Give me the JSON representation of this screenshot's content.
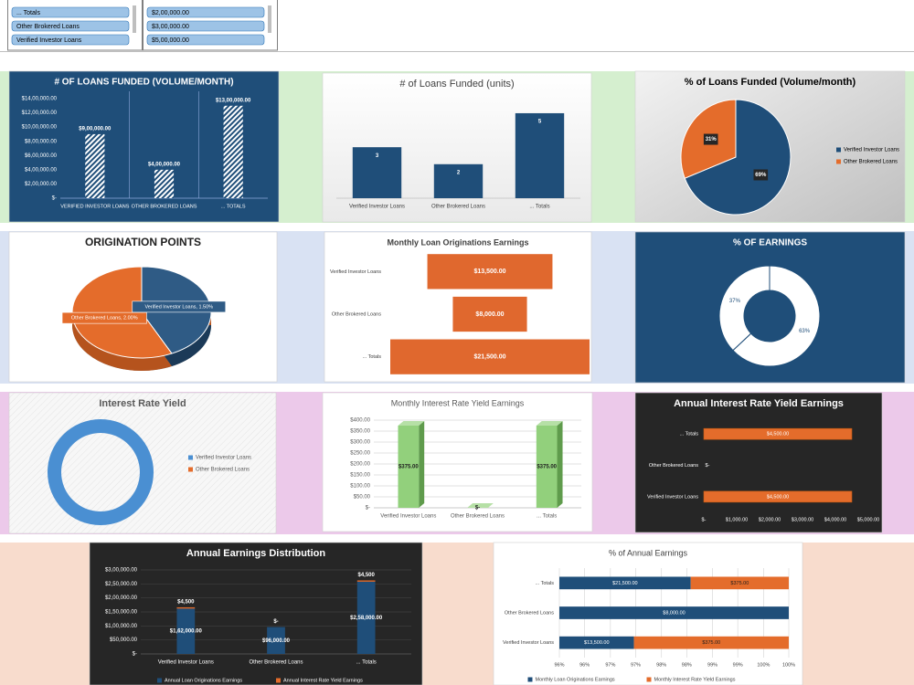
{
  "slicers": [
    {
      "items": [
        "... Totals",
        "Other Brokered Loans",
        "Verified Investor Loans"
      ]
    },
    {
      "items": [
        "$2,00,000.00",
        "$3,00,000.00",
        "$5,00,000.00"
      ]
    }
  ],
  "chart_data": [
    {
      "type": "bar",
      "title": "# OF LOANS FUNDED  (VOLUME/MONTH)",
      "categories": [
        "VERIFIED INVESTOR LOANS",
        "OTHER BROKERED LOANS",
        "... TOTALS"
      ],
      "values": [
        900000,
        400000,
        1300000
      ],
      "value_labels": [
        "$9,00,000.00",
        "$4,00,000.00",
        "$13,00,000.00"
      ],
      "color": "#ffffff",
      "ylim": [
        0,
        1400000
      ],
      "yticks": [
        {
          "value": 0,
          "label": "$-"
        },
        {
          "value": 200000,
          "label": "$2,00,000.00"
        },
        {
          "value": 400000,
          "label": "$4,00,000.00"
        },
        {
          "value": 600000,
          "label": "$6,00,000.00"
        },
        {
          "value": 800000,
          "label": "$8,00,000.00"
        },
        {
          "value": 1000000,
          "label": "$10,00,000.00"
        },
        {
          "value": 1200000,
          "label": "$12,00,000.00"
        },
        {
          "value": 1400000,
          "label": "$14,00,000.00"
        }
      ]
    },
    {
      "type": "bar",
      "title": "# of Loans Funded (units)",
      "categories": [
        "Verified Investor Loans",
        "Other Brokered Loans",
        "... Totals"
      ],
      "values": [
        3,
        2,
        5
      ],
      "color": "#1f4e79"
    },
    {
      "type": "pie",
      "title": "% of Loans Funded  (Volume/month)",
      "categories": [
        "Verified Investor Loans",
        "Other Brokered Loans"
      ],
      "values": [
        69,
        31
      ],
      "value_labels": [
        "69%",
        "31%"
      ],
      "colors": [
        "#1f4e79",
        "#e46c2b"
      ],
      "legend": "right"
    },
    {
      "type": "pie",
      "title": "ORIGINATION POINTS",
      "categories": [
        "Verified Investor Loans",
        "Other Brokered Loans"
      ],
      "values": [
        1.5,
        2.0
      ],
      "value_labels": [
        "Verified Investor Loans, 1.50%",
        "Other Brokered Loans, 2.00%"
      ],
      "colors": [
        "#2f5b85",
        "#e46c2b"
      ]
    },
    {
      "type": "funnel",
      "title": "Monthly Loan Originations Earnings",
      "categories": [
        "Verified Investor Loans",
        "Other Brokered Loans",
        "... Totals"
      ],
      "values": [
        13500,
        8000,
        21500
      ],
      "value_labels": [
        "$13,500.00",
        "$8,000.00",
        "$21,500.00"
      ],
      "color": "#e0682e"
    },
    {
      "type": "donut",
      "title": "% OF EARNINGS",
      "values": [
        63,
        37
      ],
      "value_labels": [
        "63%",
        "37%"
      ],
      "colors": [
        "#ffffff",
        "#ffffff"
      ]
    },
    {
      "type": "donut",
      "title": "Interest Rate Yield",
      "categories": [
        "Verified Investor Loans",
        "Other Brokered Loans"
      ],
      "values": [
        0.5,
        0
      ],
      "colors": [
        "#4a8fd2",
        "#e46c2b"
      ],
      "legend": "right"
    },
    {
      "type": "bar",
      "title": "Monthly Interest Rate Yield Earnings",
      "categories": [
        "Verified Investor Loans",
        "Other Brokered Loans",
        "... Totals"
      ],
      "values": [
        375,
        0,
        375
      ],
      "value_labels": [
        "$375.00",
        "$-",
        "$375.00"
      ],
      "color": "#92d07c",
      "ylim": [
        0,
        400
      ],
      "grid": true,
      "yticks": [
        {
          "value": 0,
          "label": "$-"
        },
        {
          "value": 50,
          "label": "$50.00"
        },
        {
          "value": 100,
          "label": "$100.00"
        },
        {
          "value": 150,
          "label": "$150.00"
        },
        {
          "value": 200,
          "label": "$200.00"
        },
        {
          "value": 250,
          "label": "$250.00"
        },
        {
          "value": 300,
          "label": "$300.00"
        },
        {
          "value": 350,
          "label": "$350.00"
        },
        {
          "value": 400,
          "label": "$400.00"
        }
      ]
    },
    {
      "type": "barh",
      "title": "Annual Interest Rate Yield Earnings",
      "categories": [
        "Verified Investor Loans",
        "Other Brokered Loans",
        "... Totals"
      ],
      "values": [
        4500,
        0,
        4500
      ],
      "value_labels": [
        "$4,500.00",
        "$-",
        "$4,500.00"
      ],
      "color": "#e46c2b",
      "xlim": [
        0,
        5000
      ],
      "xticks": [
        {
          "value": 0,
          "label": "$-"
        },
        {
          "value": 1000,
          "label": "$1,000.00"
        },
        {
          "value": 2000,
          "label": "$2,000.00"
        },
        {
          "value": 3000,
          "label": "$3,000.00"
        },
        {
          "value": 4000,
          "label": "$4,000.00"
        },
        {
          "value": 5000,
          "label": "$5,000.00"
        }
      ]
    },
    {
      "type": "bar",
      "title": "Annual Earnings Distribution",
      "categories": [
        "Verified Investor Loans",
        "Other Brokered Loans",
        "... Totals"
      ],
      "series": [
        {
          "name": "Annual Loan Originations Earnings",
          "color": "#1f4e79",
          "values": [
            162000,
            96000,
            258000
          ],
          "value_labels": [
            "$1,62,000.00",
            "$96,000.00",
            "$2,58,000.00"
          ]
        },
        {
          "name": "Annual Interest Rate Yield Earnings",
          "color": "#e46c2b",
          "values": [
            4500,
            0,
            4500
          ],
          "value_labels": [
            "$4,500",
            "$-",
            "$4,500"
          ]
        }
      ],
      "ylim": [
        0,
        300000
      ],
      "grid": true,
      "legend": "bottom",
      "yticks": [
        {
          "value": 0,
          "label": "$-"
        },
        {
          "value": 50000,
          "label": "$50,000.00"
        },
        {
          "value": 100000,
          "label": "$1,00,000.00"
        },
        {
          "value": 150000,
          "label": "$1,50,000.00"
        },
        {
          "value": 200000,
          "label": "$2,00,000.00"
        },
        {
          "value": 250000,
          "label": "$2,50,000.00"
        },
        {
          "value": 300000,
          "label": "$3,00,000.00"
        }
      ]
    },
    {
      "type": "barh",
      "title": "% of Annual Earnings",
      "categories": [
        "Verified Investor Loans",
        "Other Brokered Loans",
        "... Totals"
      ],
      "series": [
        {
          "name": "Monthly Loan Originations Earnings",
          "color": "#1f4e79",
          "values": [
            97.3,
            100,
            98.29
          ],
          "labels": [
            "$13,500.00",
            "$8,000.00",
            "$21,500.00"
          ]
        },
        {
          "name": "Monthly Interest Rate Yield Earnings",
          "color": "#e46c2b",
          "values": [
            2.7,
            0,
            1.71
          ],
          "labels": [
            "$375.00",
            null,
            "$375.00"
          ]
        }
      ],
      "xlim": [
        96,
        100
      ],
      "grid": true,
      "legend": "bottom",
      "xticks": [
        {
          "value": 96,
          "label": "96%"
        },
        {
          "value": 96.44,
          "label": "96%"
        },
        {
          "value": 96.89,
          "label": "97%"
        },
        {
          "value": 97.33,
          "label": "97%"
        },
        {
          "value": 97.78,
          "label": "98%"
        },
        {
          "value": 98.22,
          "label": "98%"
        },
        {
          "value": 98.67,
          "label": "99%"
        },
        {
          "value": 99.11,
          "label": "99%"
        },
        {
          "value": 99.56,
          "label": "100%"
        },
        {
          "value": 100,
          "label": "100%"
        }
      ]
    }
  ]
}
